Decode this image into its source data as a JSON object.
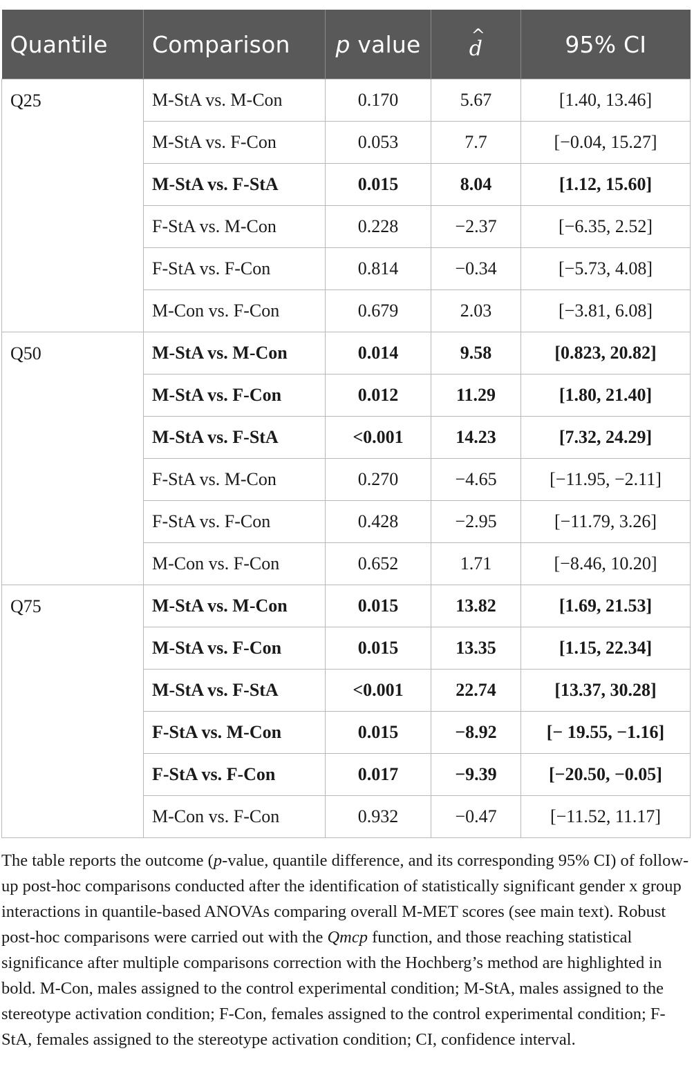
{
  "headers": {
    "quantile": "Quantile",
    "comparison": "Comparison",
    "p_value_p": "p",
    "p_value_rest": "value",
    "d_hat": "d",
    "ci": "95% CI"
  },
  "groups": [
    {
      "quantile": "Q25",
      "rows": [
        {
          "comparison": "M-StA vs. M-Con",
          "p": "0.170",
          "d": "5.67",
          "ci": "[1.40, 13.46]",
          "bold": false
        },
        {
          "comparison": "M-StA vs. F-Con",
          "p": "0.053",
          "d": "7.7",
          "ci": "[−0.04, 15.27]",
          "bold": false
        },
        {
          "comparison": "M-StA vs. F-StA",
          "p": "0.015",
          "d": "8.04",
          "ci": "[1.12, 15.60]",
          "bold": true
        },
        {
          "comparison": "F-StA vs. M-Con",
          "p": "0.228",
          "d": "−2.37",
          "ci": "[−6.35, 2.52]",
          "bold": false
        },
        {
          "comparison": "F-StA vs. F-Con",
          "p": "0.814",
          "d": "−0.34",
          "ci": "[−5.73, 4.08]",
          "bold": false
        },
        {
          "comparison": "M-Con vs. F-Con",
          "p": "0.679",
          "d": "2.03",
          "ci": "[−3.81, 6.08]",
          "bold": false
        }
      ]
    },
    {
      "quantile": "Q50",
      "rows": [
        {
          "comparison": "M-StA vs. M-Con",
          "p": "0.014",
          "d": "9.58",
          "ci": "[0.823, 20.82]",
          "bold": true
        },
        {
          "comparison": "M-StA vs. F-Con",
          "p": "0.012",
          "d": "11.29",
          "ci": "[1.80, 21.40]",
          "bold": true
        },
        {
          "comparison": "M-StA vs. F-StA",
          "p": "<0.001",
          "d": "14.23",
          "ci": "[7.32, 24.29]",
          "bold": true
        },
        {
          "comparison": "F-StA vs. M-Con",
          "p": "0.270",
          "d": "−4.65",
          "ci": "[−11.95, −2.11]",
          "bold": false
        },
        {
          "comparison": "F-StA vs. F-Con",
          "p": "0.428",
          "d": "−2.95",
          "ci": "[−11.79, 3.26]",
          "bold": false
        },
        {
          "comparison": "M-Con vs. F-Con",
          "p": "0.652",
          "d": "1.71",
          "ci": "[−8.46, 10.20]",
          "bold": false
        }
      ]
    },
    {
      "quantile": "Q75",
      "rows": [
        {
          "comparison": "M-StA vs. M-Con",
          "p": "0.015",
          "d": "13.82",
          "ci": "[1.69, 21.53]",
          "bold": true
        },
        {
          "comparison": "M-StA vs. F-Con",
          "p": "0.015",
          "d": "13.35",
          "ci": "[1.15, 22.34]",
          "bold": true
        },
        {
          "comparison": "M-StA vs. F-StA",
          "p": "<0.001",
          "d": "22.74",
          "ci": "[13.37, 30.28]",
          "bold": true
        },
        {
          "comparison": "F-StA vs. M-Con",
          "p": "0.015",
          "d": "−8.92",
          "ci": "[− 19.55, −1.16]",
          "bold": true
        },
        {
          "comparison": "F-StA vs. F-Con",
          "p": "0.017",
          "d": "−9.39",
          "ci": "[−20.50, −0.05]",
          "bold": true
        },
        {
          "comparison": "M-Con vs. F-Con",
          "p": "0.932",
          "d": "−0.47",
          "ci": "[−11.52, 11.17]",
          "bold": false
        }
      ]
    }
  ],
  "note": {
    "part1": "The table reports the outcome (",
    "part1_italic": "p",
    "part2": "-value, quantile difference, and its corresponding 95% CI) of follow-up post-hoc comparisons conducted after the identification of statistically significant gender x group interactions in quantile-based ANOVAs comparing overall M-MET scores (see main text). Robust post-hoc comparisons were carried out with the ",
    "part2_italic": "Qmcp",
    "part3": " function, and those reaching statistical significance after multiple comparisons correction with the Hochberg’s method are highlighted in bold. M-Con, males assigned to the control experimental condition; M-StA, males assigned to the stereotype activation condition; F-Con, females assigned to the control experimental condition; F-StA, females assigned to the stereotype activation condition; CI, confidence interval."
  }
}
